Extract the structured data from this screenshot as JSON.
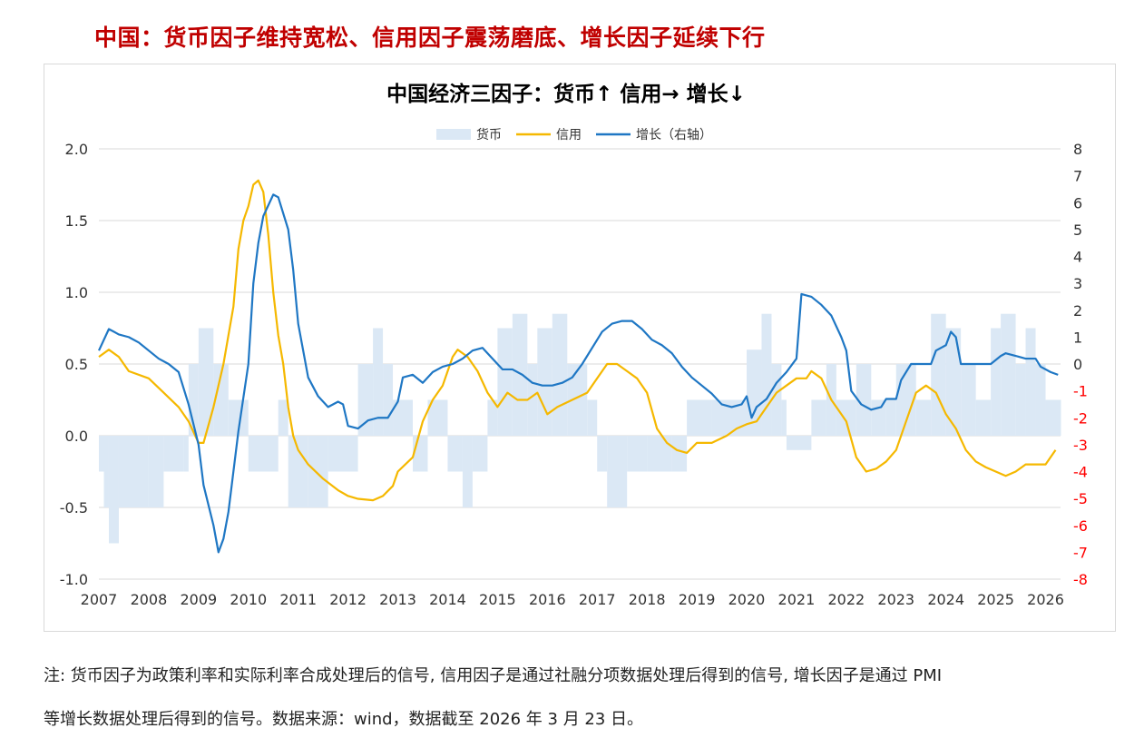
{
  "headline": "中国：货币因子维持宽松、信用因子震荡磨底、增长因子延续下行",
  "notes": [
    "注: 货币因子为政策利率和实际利率合成处理后的信号, 信用因子是通过社融分项数据处理后得到的信号, 增长因子是通过 PMI",
    "等增长数据处理后得到的信号。数据来源：wind，数据截至 2026 年 3 月 23 日。"
  ],
  "colors": {
    "money": "#dbe8f5",
    "credit": "#f5b800",
    "growth": "#1f77c4",
    "right_axis": "#ff0000",
    "headline": "#c00000"
  },
  "chart_data": {
    "type": "line",
    "title": "中国经济三因子：货币↑ 信用→ 增长↓",
    "legend": {
      "position": "top",
      "items": [
        "货币",
        "信用",
        "增长（右轴）"
      ]
    },
    "x_ticks": [
      "2007",
      "2008",
      "2009",
      "2010",
      "2011",
      "2012",
      "2013",
      "2014",
      "2015",
      "2016",
      "2017",
      "2018",
      "2019",
      "2020",
      "2021",
      "2022",
      "2023",
      "2024",
      "2025",
      "2026"
    ],
    "xlim": [
      2007.0,
      2026.3
    ],
    "ylim_left": [
      -1.0,
      2.0
    ],
    "left_ticks": [
      "2.0",
      "1.5",
      "1.0",
      "0.5",
      "0.0",
      "-0.5",
      "-1.0"
    ],
    "ylim_right": [
      -8,
      8
    ],
    "right_ticks": [
      "8",
      "7",
      "6",
      "5",
      "4",
      "3",
      "2",
      "1",
      "0",
      "-1",
      "-2",
      "-3",
      "-4",
      "-5",
      "-6",
      "-7",
      "-8"
    ],
    "grid": "horizontal",
    "series": [
      {
        "name": "货币",
        "axis": "left",
        "kind": "step-area",
        "points": [
          [
            2007.0,
            -0.25
          ],
          [
            2007.1,
            -0.5
          ],
          [
            2007.2,
            -0.75
          ],
          [
            2007.4,
            -0.5
          ],
          [
            2008.0,
            -0.5
          ],
          [
            2008.3,
            -0.25
          ],
          [
            2008.7,
            -0.25
          ],
          [
            2008.8,
            0.5
          ],
          [
            2009.0,
            0.75
          ],
          [
            2009.3,
            0.5
          ],
          [
            2009.6,
            0.25
          ],
          [
            2010.0,
            -0.25
          ],
          [
            2010.6,
            0.25
          ],
          [
            2010.8,
            -0.5
          ],
          [
            2011.2,
            -0.5
          ],
          [
            2011.6,
            -0.25
          ],
          [
            2012.2,
            0.5
          ],
          [
            2012.5,
            0.75
          ],
          [
            2012.7,
            0.5
          ],
          [
            2012.9,
            0.25
          ],
          [
            2013.3,
            -0.25
          ],
          [
            2013.6,
            0.25
          ],
          [
            2014.0,
            -0.25
          ],
          [
            2014.3,
            -0.5
          ],
          [
            2014.5,
            -0.25
          ],
          [
            2014.8,
            0.25
          ],
          [
            2015.0,
            0.75
          ],
          [
            2015.3,
            0.85
          ],
          [
            2015.6,
            0.5
          ],
          [
            2015.8,
            0.75
          ],
          [
            2016.1,
            0.85
          ],
          [
            2016.4,
            0.5
          ],
          [
            2016.8,
            0.25
          ],
          [
            2017.0,
            -0.25
          ],
          [
            2017.2,
            -0.5
          ],
          [
            2017.6,
            -0.25
          ],
          [
            2018.0,
            -0.25
          ],
          [
            2018.5,
            -0.25
          ],
          [
            2018.8,
            0.25
          ],
          [
            2019.3,
            0.25
          ],
          [
            2019.8,
            0.25
          ],
          [
            2020.0,
            0.6
          ],
          [
            2020.3,
            0.85
          ],
          [
            2020.5,
            0.5
          ],
          [
            2020.7,
            0.25
          ],
          [
            2020.8,
            -0.1
          ],
          [
            2021.3,
            0.25
          ],
          [
            2021.6,
            0.5
          ],
          [
            2021.8,
            0.25
          ],
          [
            2022.2,
            0.5
          ],
          [
            2022.5,
            0.25
          ],
          [
            2022.8,
            0.25
          ],
          [
            2023.0,
            0.5
          ],
          [
            2023.4,
            0.25
          ],
          [
            2023.7,
            0.85
          ],
          [
            2024.0,
            0.75
          ],
          [
            2024.3,
            0.5
          ],
          [
            2024.6,
            0.25
          ],
          [
            2024.9,
            0.75
          ],
          [
            2025.1,
            0.85
          ],
          [
            2025.4,
            0.5
          ],
          [
            2025.6,
            0.75
          ],
          [
            2025.8,
            0.5
          ],
          [
            2026.0,
            0.25
          ],
          [
            2026.3,
            0.25
          ]
        ]
      },
      {
        "name": "信用",
        "axis": "left",
        "kind": "line",
        "points": [
          [
            2007.0,
            0.55
          ],
          [
            2007.2,
            0.6
          ],
          [
            2007.4,
            0.55
          ],
          [
            2007.6,
            0.45
          ],
          [
            2008.0,
            0.4
          ],
          [
            2008.3,
            0.3
          ],
          [
            2008.6,
            0.2
          ],
          [
            2008.8,
            0.1
          ],
          [
            2009.0,
            -0.05
          ],
          [
            2009.1,
            -0.05
          ],
          [
            2009.3,
            0.2
          ],
          [
            2009.5,
            0.5
          ],
          [
            2009.7,
            0.9
          ],
          [
            2009.8,
            1.3
          ],
          [
            2009.9,
            1.5
          ],
          [
            2010.0,
            1.6
          ],
          [
            2010.1,
            1.75
          ],
          [
            2010.2,
            1.78
          ],
          [
            2010.3,
            1.7
          ],
          [
            2010.4,
            1.4
          ],
          [
            2010.5,
            1.0
          ],
          [
            2010.6,
            0.7
          ],
          [
            2010.7,
            0.5
          ],
          [
            2010.8,
            0.2
          ],
          [
            2010.9,
            0.0
          ],
          [
            2011.0,
            -0.1
          ],
          [
            2011.2,
            -0.2
          ],
          [
            2011.5,
            -0.3
          ],
          [
            2011.8,
            -0.38
          ],
          [
            2012.0,
            -0.42
          ],
          [
            2012.2,
            -0.44
          ],
          [
            2012.5,
            -0.45
          ],
          [
            2012.7,
            -0.42
          ],
          [
            2012.9,
            -0.35
          ],
          [
            2013.0,
            -0.25
          ],
          [
            2013.3,
            -0.15
          ],
          [
            2013.5,
            0.1
          ],
          [
            2013.7,
            0.25
          ],
          [
            2013.9,
            0.35
          ],
          [
            2014.0,
            0.45
          ],
          [
            2014.1,
            0.55
          ],
          [
            2014.2,
            0.6
          ],
          [
            2014.4,
            0.55
          ],
          [
            2014.6,
            0.45
          ],
          [
            2014.8,
            0.3
          ],
          [
            2015.0,
            0.2
          ],
          [
            2015.2,
            0.3
          ],
          [
            2015.4,
            0.25
          ],
          [
            2015.6,
            0.25
          ],
          [
            2015.8,
            0.3
          ],
          [
            2016.0,
            0.15
          ],
          [
            2016.2,
            0.2
          ],
          [
            2016.5,
            0.25
          ],
          [
            2016.8,
            0.3
          ],
          [
            2017.0,
            0.4
          ],
          [
            2017.2,
            0.5
          ],
          [
            2017.4,
            0.5
          ],
          [
            2017.6,
            0.45
          ],
          [
            2017.8,
            0.4
          ],
          [
            2018.0,
            0.3
          ],
          [
            2018.2,
            0.05
          ],
          [
            2018.4,
            -0.05
          ],
          [
            2018.6,
            -0.1
          ],
          [
            2018.8,
            -0.12
          ],
          [
            2019.0,
            -0.05
          ],
          [
            2019.3,
            -0.05
          ],
          [
            2019.6,
            0.0
          ],
          [
            2019.8,
            0.05
          ],
          [
            2020.0,
            0.08
          ],
          [
            2020.2,
            0.1
          ],
          [
            2020.4,
            0.2
          ],
          [
            2020.6,
            0.3
          ],
          [
            2020.8,
            0.35
          ],
          [
            2021.0,
            0.4
          ],
          [
            2021.2,
            0.4
          ],
          [
            2021.3,
            0.45
          ],
          [
            2021.5,
            0.4
          ],
          [
            2021.7,
            0.25
          ],
          [
            2021.9,
            0.15
          ],
          [
            2022.0,
            0.1
          ],
          [
            2022.2,
            -0.15
          ],
          [
            2022.4,
            -0.25
          ],
          [
            2022.6,
            -0.23
          ],
          [
            2022.8,
            -0.18
          ],
          [
            2023.0,
            -0.1
          ],
          [
            2023.2,
            0.1
          ],
          [
            2023.4,
            0.3
          ],
          [
            2023.6,
            0.35
          ],
          [
            2023.8,
            0.3
          ],
          [
            2024.0,
            0.15
          ],
          [
            2024.2,
            0.05
          ],
          [
            2024.4,
            -0.1
          ],
          [
            2024.6,
            -0.18
          ],
          [
            2024.8,
            -0.22
          ],
          [
            2025.0,
            -0.25
          ],
          [
            2025.2,
            -0.28
          ],
          [
            2025.4,
            -0.25
          ],
          [
            2025.6,
            -0.2
          ],
          [
            2025.8,
            -0.2
          ],
          [
            2026.0,
            -0.2
          ],
          [
            2026.2,
            -0.1
          ]
        ]
      },
      {
        "name": "增长（右轴）",
        "axis": "right",
        "kind": "line",
        "points": [
          [
            2007.0,
            0.5
          ],
          [
            2007.2,
            1.3
          ],
          [
            2007.4,
            1.1
          ],
          [
            2007.6,
            1.0
          ],
          [
            2007.8,
            0.8
          ],
          [
            2008.0,
            0.5
          ],
          [
            2008.2,
            0.2
          ],
          [
            2008.4,
            0.0
          ],
          [
            2008.6,
            -0.3
          ],
          [
            2008.8,
            -1.5
          ],
          [
            2009.0,
            -3.0
          ],
          [
            2009.1,
            -4.5
          ],
          [
            2009.3,
            -6.0
          ],
          [
            2009.4,
            -7.0
          ],
          [
            2009.5,
            -6.5
          ],
          [
            2009.6,
            -5.5
          ],
          [
            2009.7,
            -4.0
          ],
          [
            2009.8,
            -2.5
          ],
          [
            2010.0,
            0.0
          ],
          [
            2010.1,
            3.0
          ],
          [
            2010.2,
            4.5
          ],
          [
            2010.3,
            5.5
          ],
          [
            2010.5,
            6.3
          ],
          [
            2010.6,
            6.2
          ],
          [
            2010.8,
            5.0
          ],
          [
            2010.9,
            3.5
          ],
          [
            2011.0,
            1.5
          ],
          [
            2011.2,
            -0.5
          ],
          [
            2011.4,
            -1.2
          ],
          [
            2011.6,
            -1.6
          ],
          [
            2011.8,
            -1.4
          ],
          [
            2011.9,
            -1.5
          ],
          [
            2012.0,
            -2.3
          ],
          [
            2012.2,
            -2.4
          ],
          [
            2012.4,
            -2.1
          ],
          [
            2012.6,
            -2.0
          ],
          [
            2012.8,
            -2.0
          ],
          [
            2013.0,
            -1.4
          ],
          [
            2013.1,
            -0.5
          ],
          [
            2013.3,
            -0.4
          ],
          [
            2013.5,
            -0.7
          ],
          [
            2013.7,
            -0.3
          ],
          [
            2013.9,
            -0.1
          ],
          [
            2014.1,
            0.0
          ],
          [
            2014.3,
            0.2
          ],
          [
            2014.5,
            0.5
          ],
          [
            2014.7,
            0.6
          ],
          [
            2014.9,
            0.2
          ],
          [
            2015.1,
            -0.2
          ],
          [
            2015.3,
            -0.2
          ],
          [
            2015.5,
            -0.4
          ],
          [
            2015.7,
            -0.7
          ],
          [
            2015.9,
            -0.8
          ],
          [
            2016.1,
            -0.8
          ],
          [
            2016.3,
            -0.7
          ],
          [
            2016.5,
            -0.5
          ],
          [
            2016.7,
            0.0
          ],
          [
            2016.9,
            0.6
          ],
          [
            2017.1,
            1.2
          ],
          [
            2017.3,
            1.5
          ],
          [
            2017.5,
            1.6
          ],
          [
            2017.7,
            1.6
          ],
          [
            2017.9,
            1.3
          ],
          [
            2018.1,
            0.9
          ],
          [
            2018.3,
            0.7
          ],
          [
            2018.5,
            0.4
          ],
          [
            2018.7,
            -0.1
          ],
          [
            2018.9,
            -0.5
          ],
          [
            2019.1,
            -0.8
          ],
          [
            2019.3,
            -1.1
          ],
          [
            2019.5,
            -1.5
          ],
          [
            2019.7,
            -1.6
          ],
          [
            2019.9,
            -1.5
          ],
          [
            2020.0,
            -1.2
          ],
          [
            2020.1,
            -2.0
          ],
          [
            2020.2,
            -1.6
          ],
          [
            2020.4,
            -1.3
          ],
          [
            2020.6,
            -0.7
          ],
          [
            2020.8,
            -0.3
          ],
          [
            2021.0,
            0.2
          ],
          [
            2021.1,
            2.6
          ],
          [
            2021.3,
            2.5
          ],
          [
            2021.5,
            2.2
          ],
          [
            2021.7,
            1.8
          ],
          [
            2021.9,
            1.0
          ],
          [
            2022.0,
            0.5
          ],
          [
            2022.1,
            -1.0
          ],
          [
            2022.3,
            -1.5
          ],
          [
            2022.5,
            -1.7
          ],
          [
            2022.7,
            -1.6
          ],
          [
            2022.8,
            -1.3
          ],
          [
            2023.0,
            -1.3
          ],
          [
            2023.1,
            -0.6
          ],
          [
            2023.3,
            0.0
          ],
          [
            2023.5,
            0.0
          ],
          [
            2023.7,
            0.0
          ],
          [
            2023.8,
            0.5
          ],
          [
            2024.0,
            0.7
          ],
          [
            2024.1,
            1.2
          ],
          [
            2024.2,
            1.0
          ],
          [
            2024.3,
            0.0
          ],
          [
            2024.5,
            0.0
          ],
          [
            2024.7,
            0.0
          ],
          [
            2024.9,
            0.0
          ],
          [
            2025.1,
            0.3
          ],
          [
            2025.2,
            0.4
          ],
          [
            2025.4,
            0.3
          ],
          [
            2025.6,
            0.2
          ],
          [
            2025.8,
            0.2
          ],
          [
            2025.9,
            -0.1
          ],
          [
            2026.1,
            -0.3
          ],
          [
            2026.25,
            -0.4
          ]
        ]
      }
    ]
  }
}
